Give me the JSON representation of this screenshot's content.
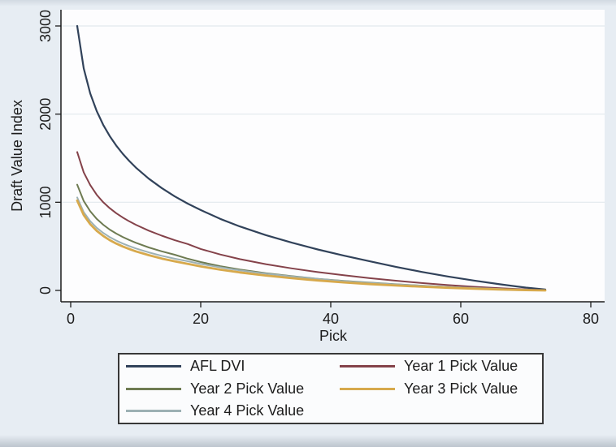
{
  "figure": {
    "background_color": "#e7edf3",
    "plot_background_color": "#fdfdfe",
    "grid_color": "#e2e8ed",
    "axis_color": "#1c1c1c",
    "legend_border_color": "#383838",
    "legend_background_color": "#fbfcfd"
  },
  "chart_data": {
    "type": "line",
    "title": "",
    "xlabel": "Pick",
    "ylabel": "Draft Value Index",
    "xlim": [
      0,
      80
    ],
    "ylim": [
      0,
      3000
    ],
    "x_ticks": [
      0,
      20,
      40,
      60,
      80
    ],
    "y_ticks": [
      0,
      1000,
      2000,
      3000
    ],
    "grid": "horizontal-at-y-ticks-above-zero",
    "legend_position": "bottom-two-columns",
    "x": [
      1,
      2,
      3,
      4,
      5,
      6,
      7,
      8,
      9,
      10,
      12,
      14,
      16,
      18,
      20,
      23,
      26,
      30,
      34,
      38,
      42,
      46,
      50,
      54,
      58,
      62,
      66,
      70,
      73
    ],
    "series": [
      {
        "name": "AFL DVI",
        "color": "#31425a",
        "values": [
          3000,
          2520,
          2235,
          2035,
          1878,
          1751,
          1644,
          1551,
          1469,
          1395,
          1268,
          1161,
          1067,
          985,
          912,
          812,
          726,
          628,
          542,
          465,
          395,
          330,
          268,
          210,
          158,
          112,
          70,
          32,
          10
        ]
      },
      {
        "name": "Year 1 Pick Value",
        "color": "#84424a",
        "values": [
          1570,
          1340,
          1195,
          1085,
          1000,
          933,
          876,
          827,
          784,
          745,
          678,
          621,
          570,
          526,
          470,
          408,
          355,
          298,
          250,
          208,
          172,
          139,
          110,
          84,
          61,
          41,
          25,
          11,
          3
        ]
      },
      {
        "name": "Year 2 Pick Value",
        "color": "#6e7b52",
        "values": [
          1200,
          1015,
          898,
          812,
          745,
          690,
          645,
          606,
          572,
          541,
          488,
          444,
          405,
          360,
          322,
          275,
          237,
          196,
          162,
          132,
          108,
          88,
          70,
          54,
          40,
          28,
          17,
          7,
          2
        ]
      },
      {
        "name": "Year 3 Pick Value",
        "color": "#d7a94c",
        "values": [
          1020,
          855,
          752,
          676,
          618,
          571,
          532,
          499,
          470,
          444,
          400,
          362,
          330,
          302,
          272,
          236,
          204,
          169,
          139,
          113,
          91,
          72,
          56,
          42,
          30,
          20,
          11,
          4,
          0
        ]
      },
      {
        "name": "Year 4 Pick Value",
        "color": "#9db1b4",
        "values": [
          1055,
          888,
          786,
          710,
          652,
          605,
          566,
          532,
          503,
          477,
          432,
          393,
          360,
          331,
          300,
          262,
          228,
          190,
          158,
          130,
          106,
          86,
          68,
          53,
          40,
          28,
          17,
          7,
          1
        ]
      }
    ],
    "draw_order": [
      0,
      1,
      2,
      4,
      3
    ],
    "line_widths": [
      2.2,
      2.0,
      2.0,
      2.8,
      2.0
    ]
  }
}
